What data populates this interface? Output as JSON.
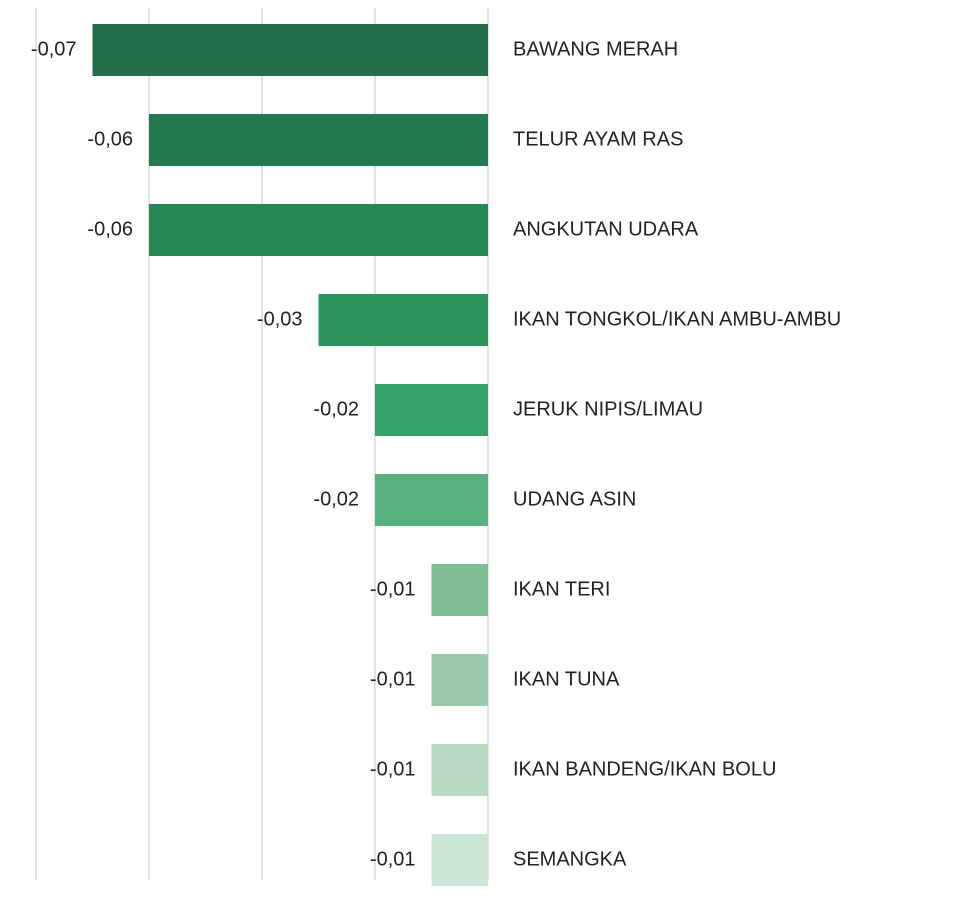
{
  "chart_data": {
    "type": "bar",
    "orientation": "horizontal",
    "categories": [
      "BAWANG MERAH",
      "TELUR AYAM RAS",
      "ANGKUTAN UDARA",
      "IKAN TONGKOL/IKAN AMBU-AMBU",
      "JERUK NIPIS/LIMAU",
      "UDANG ASIN",
      "IKAN TERI",
      "IKAN TUNA",
      "IKAN BANDENG/IKAN BOLU",
      "SEMANGKA"
    ],
    "values": [
      -0.07,
      -0.06,
      -0.06,
      -0.03,
      -0.02,
      -0.02,
      -0.01,
      -0.01,
      -0.01,
      -0.01
    ],
    "value_labels": [
      "-0,07",
      "-0,06",
      "-0,06",
      "-0,03",
      "-0,02",
      "-0,02",
      "-0,01",
      "-0,01",
      "-0,01",
      "-0,01"
    ],
    "colors": [
      "#21704a",
      "#237a4f",
      "#278753",
      "#2d955e",
      "#33a367",
      "#56b07f",
      "#80be98",
      "#9ccbad",
      "#b6d9c3",
      "#cce6d6"
    ],
    "xlim": [
      -0.08,
      0
    ],
    "xticks": [
      -0.08,
      -0.06,
      -0.04,
      -0.02,
      0
    ],
    "grid": true
  }
}
